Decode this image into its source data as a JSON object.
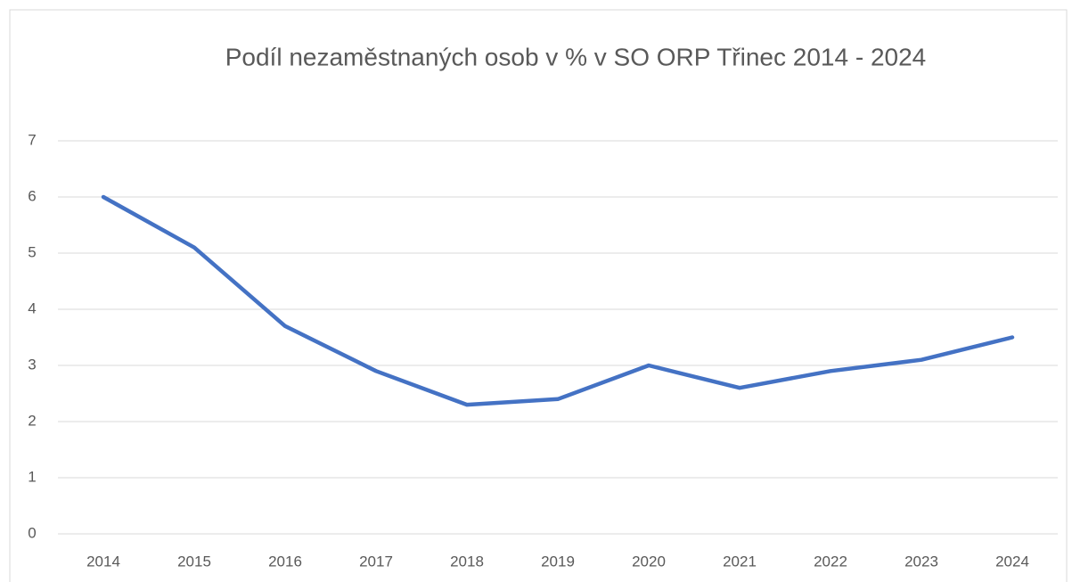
{
  "chart_data": {
    "type": "line",
    "title": "Podíl nezaměstnaných osob v % v SO ORP Třinec 2014 - 2024",
    "categories": [
      "2014",
      "2015",
      "2016",
      "2017",
      "2018",
      "2019",
      "2020",
      "2021",
      "2022",
      "2023",
      "2024"
    ],
    "values": [
      6.0,
      5.1,
      3.7,
      2.9,
      2.3,
      2.4,
      3.0,
      2.6,
      2.9,
      3.1,
      3.5
    ],
    "color": "#4472c4",
    "ylim": [
      0,
      7
    ],
    "yticks": [
      0,
      1,
      2,
      3,
      4,
      5,
      6,
      7
    ],
    "grid": true
  }
}
